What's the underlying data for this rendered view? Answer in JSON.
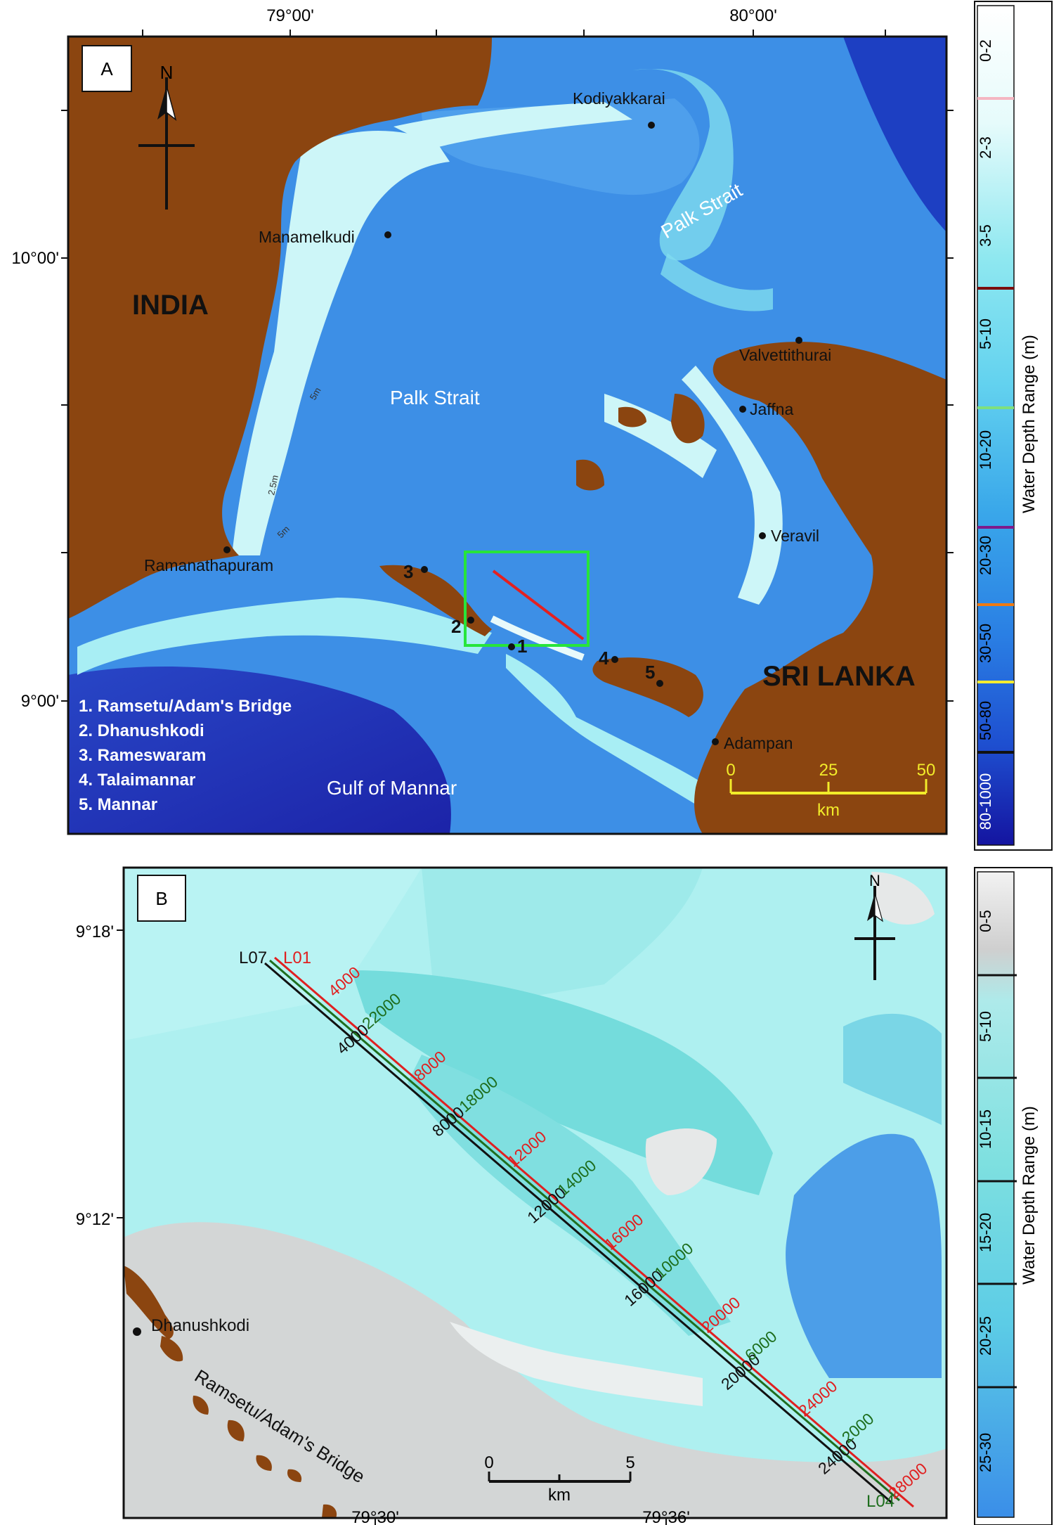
{
  "panel_a": {
    "label": "A",
    "lon_ticks": [
      "79°00'",
      "80°00'"
    ],
    "lat_ticks": [
      "10°00'",
      "9°00'"
    ],
    "north": "N",
    "country_india": "INDIA",
    "country_srilanka": "SRI LANKA",
    "water": {
      "palk_strait_center": "Palk Strait",
      "palk_strait_ne": "Palk Strait",
      "gulf": "Gulf of Mannar"
    },
    "places": {
      "kodiyakkarai": "Kodiyakkarai",
      "manamelkudi": "Manamelkudi",
      "valvettithurai": "Valvettithurai",
      "jaffna": "Jaffna",
      "veravil": "Veravil",
      "ramanathapuram": "Ramanathapuram",
      "adampan": "Adampan"
    },
    "point_numbers": [
      "1",
      "2",
      "3",
      "4",
      "5"
    ],
    "contours": {
      "c5a": "5m",
      "c25": "2.5m",
      "c5b": "5m"
    },
    "legend_list": [
      "1. Ramsetu/Adam's Bridge",
      "2. Dhanushkodi",
      "3. Rameswaram",
      "4. Talaimannar",
      "5. Mannar"
    ],
    "scale": {
      "ticks": [
        "0",
        "25",
        "50"
      ],
      "unit": "km"
    },
    "colorbar": {
      "title": "Water Depth Range (m)",
      "classes": [
        "0-2",
        "2-3",
        "3-5",
        "5-10",
        "10-20",
        "20-30",
        "30-50",
        "50-80",
        "80-1000"
      ],
      "class_colors": [
        "#ffffff",
        "#d4fafa",
        "#97edf2",
        "#5fd0ee",
        "#3aa8ea",
        "#2a86e6",
        "#2266dd",
        "#1b45cc",
        "#1818a8"
      ],
      "line_colors": [
        "#f4b6c2",
        "#7b0e0e",
        "#7ee07e",
        "#7e1a8c",
        "#f07a10",
        "#f4ec30",
        "#111111"
      ]
    }
  },
  "panel_b": {
    "label": "B",
    "lat_ticks": [
      "9°18'",
      "9°12'"
    ],
    "lon_ticks": [
      "79°30'",
      "79°36'"
    ],
    "north": "N",
    "place_dhanushkodi": "Dhanushkodi",
    "bridge_label": "Ramsetu/Adam's Bridge",
    "lines": {
      "l07": {
        "name": "L07",
        "color": "#111111",
        "marks": [
          "4000",
          "8000",
          "12000",
          "16000",
          "20000",
          "24000"
        ]
      },
      "l01": {
        "name": "L01",
        "color": "#e02020",
        "marks": [
          "4000",
          "8000",
          "12000",
          "16000",
          "20000",
          "24000",
          "28000"
        ]
      },
      "l04": {
        "name": "L04",
        "color": "#1e6e1e",
        "marks": [
          "22000",
          "18000",
          "14000",
          "10000",
          "6000",
          "2000"
        ]
      }
    },
    "scale": {
      "ticks": [
        "0",
        "5"
      ],
      "unit": "km"
    },
    "colorbar": {
      "title": "Water Depth Range (m)",
      "classes": [
        "0-5",
        "5-10",
        "10-15",
        "15-20",
        "20-25",
        "25-30"
      ],
      "class_colors": [
        "#d4d4d4",
        "#a8ecec",
        "#7de2e2",
        "#56d6e2",
        "#4fb8ec",
        "#3f8fe8"
      ]
    }
  }
}
